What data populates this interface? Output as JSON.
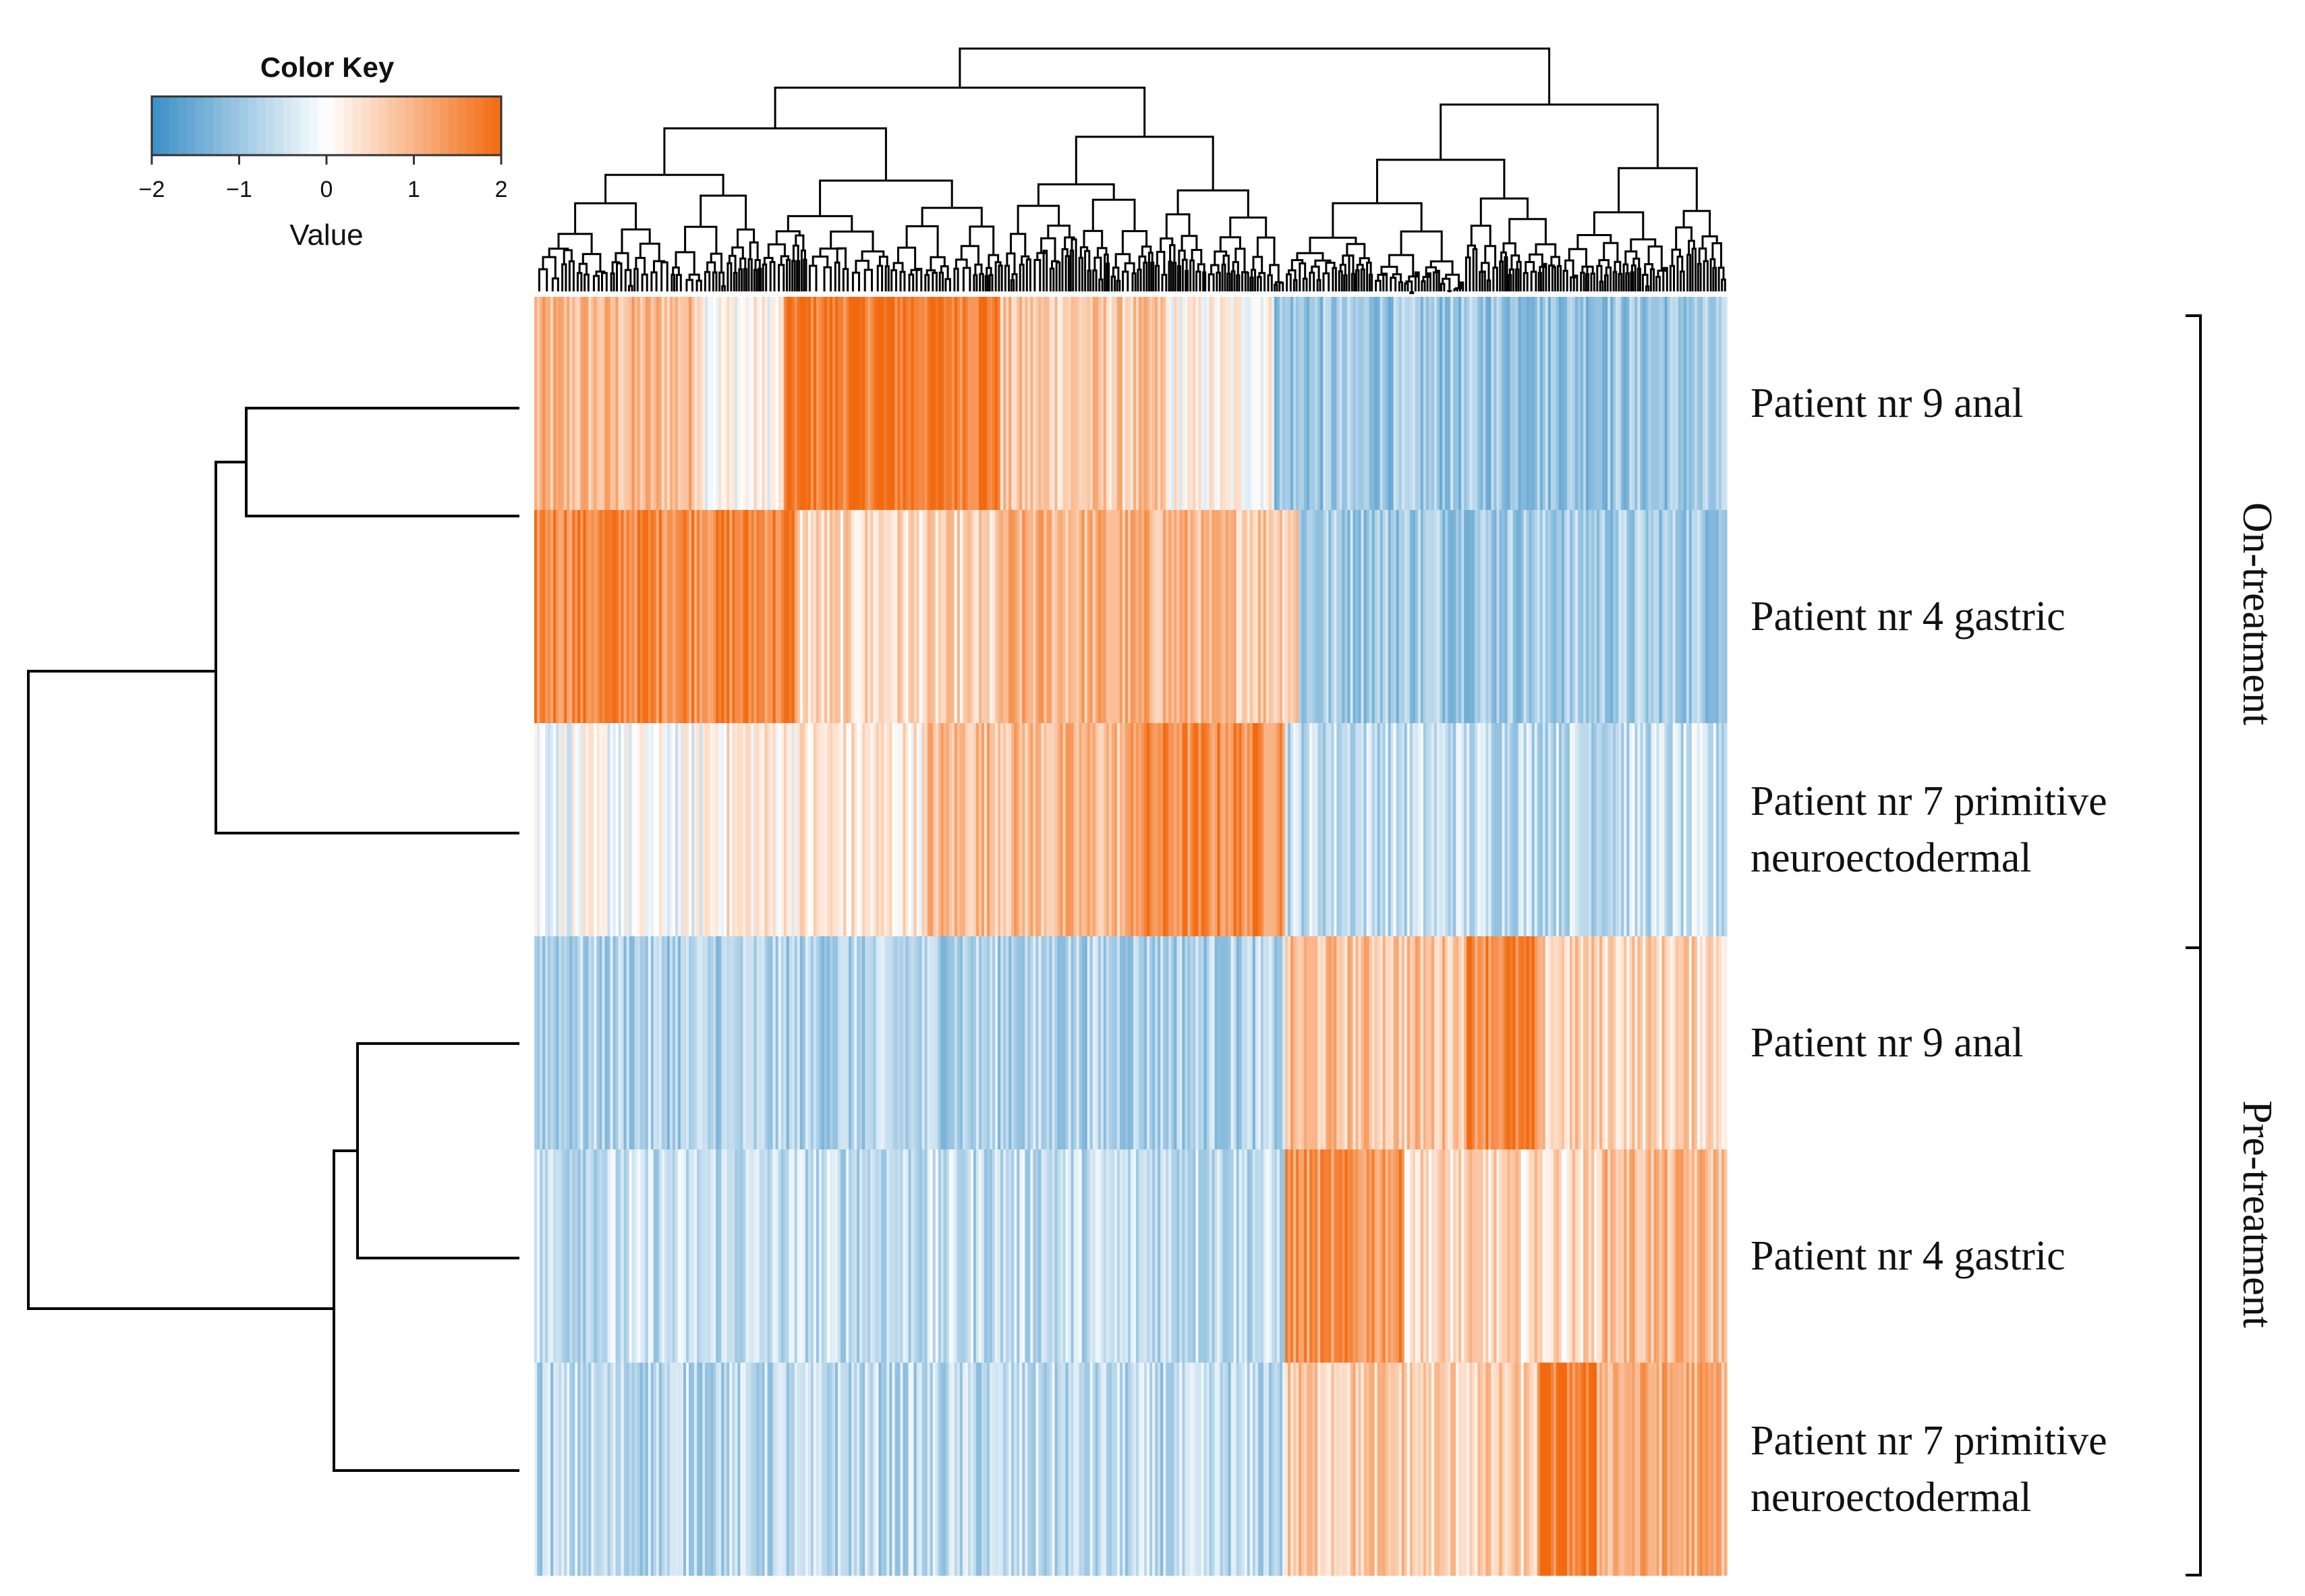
{
  "chart_data": {
    "type": "heatmap",
    "title": "",
    "color_key": {
      "title": "Color Key",
      "label": "Value",
      "range": [
        -2,
        2
      ],
      "ticks": [
        -2,
        -1,
        0,
        1,
        2
      ],
      "tick_labels": [
        "−2",
        "−1",
        "0",
        "1",
        "2"
      ],
      "low_color": "#3a8fc6",
      "mid_color": "#ffffff",
      "high_color": "#f26a10"
    },
    "rows": [
      {
        "label_lines": [
          "Patient nr 9 anal"
        ],
        "group": "On-treatment",
        "blocks": [
          {
            "from": 0.0,
            "to": 0.14,
            "mean": 0.9
          },
          {
            "from": 0.14,
            "to": 0.21,
            "mean": 0.1
          },
          {
            "from": 0.21,
            "to": 0.39,
            "mean": 1.8
          },
          {
            "from": 0.39,
            "to": 0.53,
            "mean": 0.7
          },
          {
            "from": 0.53,
            "to": 0.62,
            "mean": 0.1
          },
          {
            "from": 0.62,
            "to": 1.0,
            "mean": -1.0
          }
        ]
      },
      {
        "label_lines": [
          "Patient nr 4 gastric"
        ],
        "group": "On-treatment",
        "blocks": [
          {
            "from": 0.0,
            "to": 0.22,
            "mean": 1.6
          },
          {
            "from": 0.22,
            "to": 0.39,
            "mean": 0.5
          },
          {
            "from": 0.39,
            "to": 0.56,
            "mean": 1.0
          },
          {
            "from": 0.56,
            "to": 0.64,
            "mean": 0.8
          },
          {
            "from": 0.64,
            "to": 1.0,
            "mean": -0.9
          }
        ]
      },
      {
        "label_lines": [
          "Patient nr 7 primitive",
          "neuroectodermal"
        ],
        "group": "On-treatment",
        "blocks": [
          {
            "from": 0.0,
            "to": 0.14,
            "mean": -0.1
          },
          {
            "from": 0.14,
            "to": 0.33,
            "mean": 0.3
          },
          {
            "from": 0.33,
            "to": 0.5,
            "mean": 0.9
          },
          {
            "from": 0.5,
            "to": 0.63,
            "mean": 1.5
          },
          {
            "from": 0.63,
            "to": 1.0,
            "mean": -0.6
          }
        ]
      },
      {
        "label_lines": [
          "Patient nr 9 anal"
        ],
        "group": "Pre-treatment",
        "blocks": [
          {
            "from": 0.0,
            "to": 0.63,
            "mean": -0.8
          },
          {
            "from": 0.63,
            "to": 0.78,
            "mean": 0.8
          },
          {
            "from": 0.78,
            "to": 0.84,
            "mean": 1.6
          },
          {
            "from": 0.84,
            "to": 1.0,
            "mean": 0.6
          }
        ]
      },
      {
        "label_lines": [
          "Patient nr 4 gastric"
        ],
        "group": "Pre-treatment",
        "blocks": [
          {
            "from": 0.0,
            "to": 0.63,
            "mean": -0.6
          },
          {
            "from": 0.63,
            "to": 0.73,
            "mean": 1.4
          },
          {
            "from": 0.73,
            "to": 0.89,
            "mean": 0.5
          },
          {
            "from": 0.89,
            "to": 1.0,
            "mean": 0.9
          }
        ]
      },
      {
        "label_lines": [
          "Patient nr 7 primitive",
          "neuroectodermal"
        ],
        "group": "Pre-treatment",
        "blocks": [
          {
            "from": 0.0,
            "to": 0.63,
            "mean": -0.7
          },
          {
            "from": 0.63,
            "to": 0.73,
            "mean": 0.7
          },
          {
            "from": 0.73,
            "to": 0.84,
            "mean": 0.6
          },
          {
            "from": 0.84,
            "to": 0.89,
            "mean": 1.7
          },
          {
            "from": 0.89,
            "to": 1.0,
            "mean": 1.1
          }
        ]
      }
    ],
    "groups": [
      {
        "label": "On-treatment",
        "rows": [
          0,
          1,
          2
        ]
      },
      {
        "label": "Pre-treatment",
        "rows": [
          3,
          4,
          5
        ]
      }
    ],
    "row_dendrogram": true,
    "column_dendrogram": true
  }
}
